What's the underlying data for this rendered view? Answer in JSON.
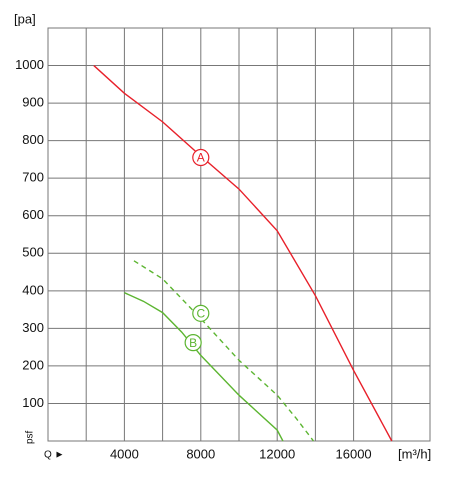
{
  "chart_data": {
    "type": "line",
    "y_unit": "[pa]",
    "x_unit": "[m³/h]",
    "y_axis_label": "psf",
    "x_axis_label": "Q ►",
    "xlim": [
      0,
      20000
    ],
    "ylim": [
      0,
      1100
    ],
    "xticks": [
      4000,
      8000,
      12000,
      16000
    ],
    "xgrid": [
      2000,
      4000,
      6000,
      8000,
      10000,
      12000,
      14000,
      16000,
      18000
    ],
    "yticks": [
      100,
      200,
      300,
      400,
      500,
      600,
      700,
      800,
      900,
      1000
    ],
    "grid": true,
    "series": [
      {
        "name": "A",
        "color": "#e8202a",
        "dashed": false,
        "label_at": [
          8000,
          755
        ],
        "x": [
          2400,
          4000,
          6000,
          8000,
          10000,
          12000,
          14000,
          16000,
          18000
        ],
        "values": [
          1000,
          926,
          850,
          759,
          671,
          560,
          387,
          188,
          0
        ]
      },
      {
        "name": "B",
        "color": "#5cb531",
        "dashed": false,
        "label_at": [
          7600,
          262
        ],
        "x": [
          4000,
          5000,
          6000,
          7000,
          8000,
          10000,
          12000,
          12300
        ],
        "values": [
          395,
          372,
          342,
          290,
          228,
          122,
          29,
          0
        ]
      },
      {
        "name": "C",
        "color": "#5cb531",
        "dashed": true,
        "label_at": [
          8000,
          340
        ],
        "x": [
          4500,
          6000,
          8000,
          10000,
          12000,
          13000,
          13900
        ],
        "values": [
          480,
          432,
          326,
          215,
          122,
          60,
          0
        ]
      }
    ]
  }
}
